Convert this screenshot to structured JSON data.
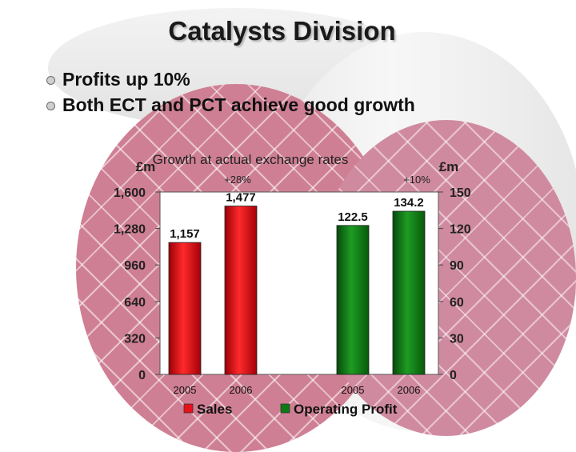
{
  "slide": {
    "title": "Catalysts Division",
    "bullets": [
      "Profits up 10%",
      "Both ECT and PCT achieve good growth"
    ]
  },
  "chart_data": {
    "type": "bar",
    "title": "Growth at actual exchange rates",
    "left_axis": {
      "label": "£m",
      "ticks": [
        0,
        320,
        640,
        960,
        1280,
        1600
      ],
      "tick_labels": [
        "0",
        "320",
        "640",
        "960",
        "1,280",
        "1,600"
      ],
      "range": [
        0,
        1600
      ]
    },
    "right_axis": {
      "label": "£m",
      "ticks": [
        0,
        30,
        60,
        90,
        120,
        150
      ],
      "tick_labels": [
        "0",
        "30",
        "60",
        "90",
        "120",
        "150"
      ],
      "range": [
        0,
        150
      ]
    },
    "categories": [
      "2005",
      "2006",
      "2005",
      "2006"
    ],
    "series": [
      {
        "name": "Sales",
        "axis": "left",
        "color": "#e8101a",
        "x": [
          "2005",
          "2006"
        ],
        "values": [
          1157,
          1477
        ],
        "labels": [
          "1,157",
          "1,477"
        ],
        "growth": "+28%"
      },
      {
        "name": "Operating Profit",
        "axis": "right",
        "color": "#0e7a14",
        "x": [
          "2005",
          "2006"
        ],
        "values": [
          122.5,
          134.2
        ],
        "labels": [
          "122.5",
          "134.2"
        ],
        "growth": "+10%"
      }
    ],
    "legend_position": "bottom",
    "grid": false
  }
}
